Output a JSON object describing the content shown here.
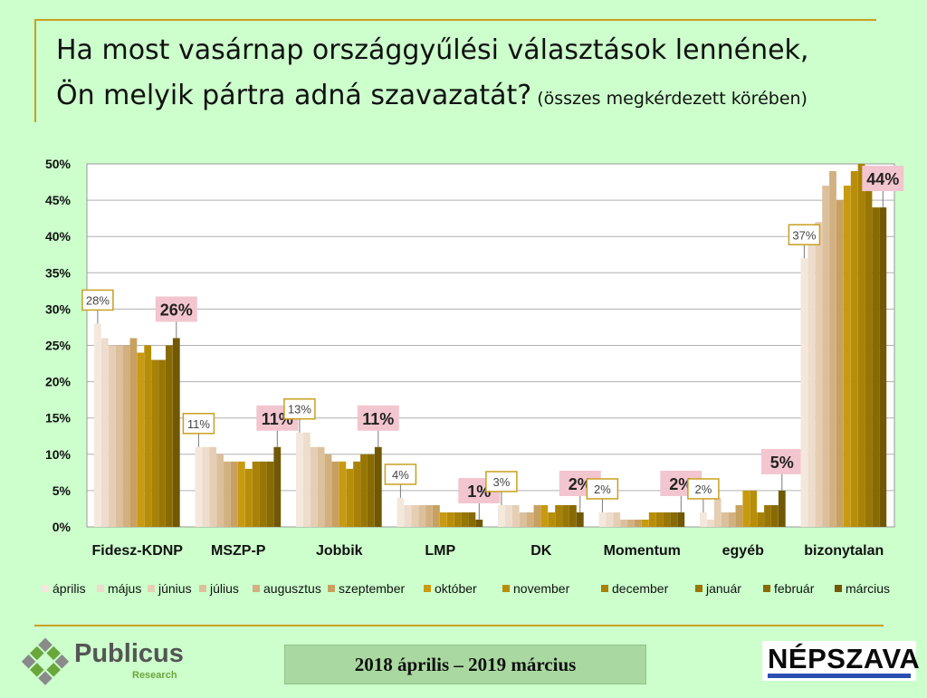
{
  "title": {
    "line1": "Ha most vasárnap országgyűlési választások lennének,",
    "line2": "Ön melyik pártra adná szavazatát?",
    "sub": "(összes megkérdezett körében)"
  },
  "footer": {
    "period": "2018 április – 2019 március",
    "logo_left": "Publicus",
    "logo_left_sub": "Research",
    "logo_right": "NÉPSZAVA"
  },
  "colors": {
    "background": "#ccffcc",
    "plot_background": "#ffffff",
    "accent_rule": "#c8a020",
    "callout_last": "#f3c6cf",
    "callout_first_border": "#c8a020"
  },
  "chart_data": {
    "type": "bar",
    "ylim": [
      0,
      50
    ],
    "yticks": [
      "0%",
      "5%",
      "10%",
      "15%",
      "20%",
      "25%",
      "30%",
      "35%",
      "40%",
      "45%",
      "50%"
    ],
    "grid": true,
    "legend_position": "bottom",
    "categories": [
      "Fidesz-KDNP",
      "MSZP-P",
      "Jobbik",
      "LMP",
      "DK",
      "Momentum",
      "egyéb",
      "bizonytalan"
    ],
    "series": [
      {
        "name": "április",
        "color": "#f4e8dc",
        "values": [
          28,
          11,
          13,
          4,
          3,
          2,
          2,
          37
        ]
      },
      {
        "name": "május",
        "color": "#eedccc",
        "values": [
          26,
          11,
          13,
          3,
          3,
          2,
          1,
          40
        ]
      },
      {
        "name": "június",
        "color": "#e6ceb4",
        "values": [
          25,
          11,
          11,
          3,
          3,
          2,
          4,
          42
        ]
      },
      {
        "name": "július",
        "color": "#dcc09c",
        "values": [
          25,
          10,
          11,
          3,
          2,
          1,
          2,
          47
        ]
      },
      {
        "name": "augusztus",
        "color": "#d2b080",
        "values": [
          25,
          9,
          10,
          3,
          2,
          1,
          2,
          49
        ]
      },
      {
        "name": "szeptember",
        "color": "#c8a060",
        "values": [
          26,
          9,
          9,
          3,
          3,
          1,
          3,
          45
        ]
      },
      {
        "name": "október",
        "color": "#c89a10",
        "values": [
          24,
          9,
          9,
          2,
          3,
          1,
          5,
          47
        ]
      },
      {
        "name": "november",
        "color": "#b88e08",
        "values": [
          25,
          8,
          8,
          2,
          2,
          2,
          5,
          49
        ]
      },
      {
        "name": "december",
        "color": "#a88206",
        "values": [
          23,
          9,
          9,
          2,
          3,
          2,
          2,
          50
        ]
      },
      {
        "name": "január",
        "color": "#987604",
        "values": [
          23,
          9,
          10,
          2,
          3,
          2,
          3,
          48
        ]
      },
      {
        "name": "február",
        "color": "#886a04",
        "values": [
          25,
          9,
          10,
          2,
          3,
          2,
          3,
          44
        ]
      },
      {
        "name": "március",
        "color": "#705804",
        "values": [
          26,
          11,
          11,
          1,
          2,
          2,
          5,
          44
        ]
      }
    ],
    "annotations": {
      "first": [
        "28%",
        "11%",
        "13%",
        "4%",
        "3%",
        "2%",
        "2%",
        "37%"
      ],
      "last": [
        "26%",
        "11%",
        "11%",
        "1%",
        "2%",
        "2%",
        "5%",
        "44%"
      ]
    }
  }
}
